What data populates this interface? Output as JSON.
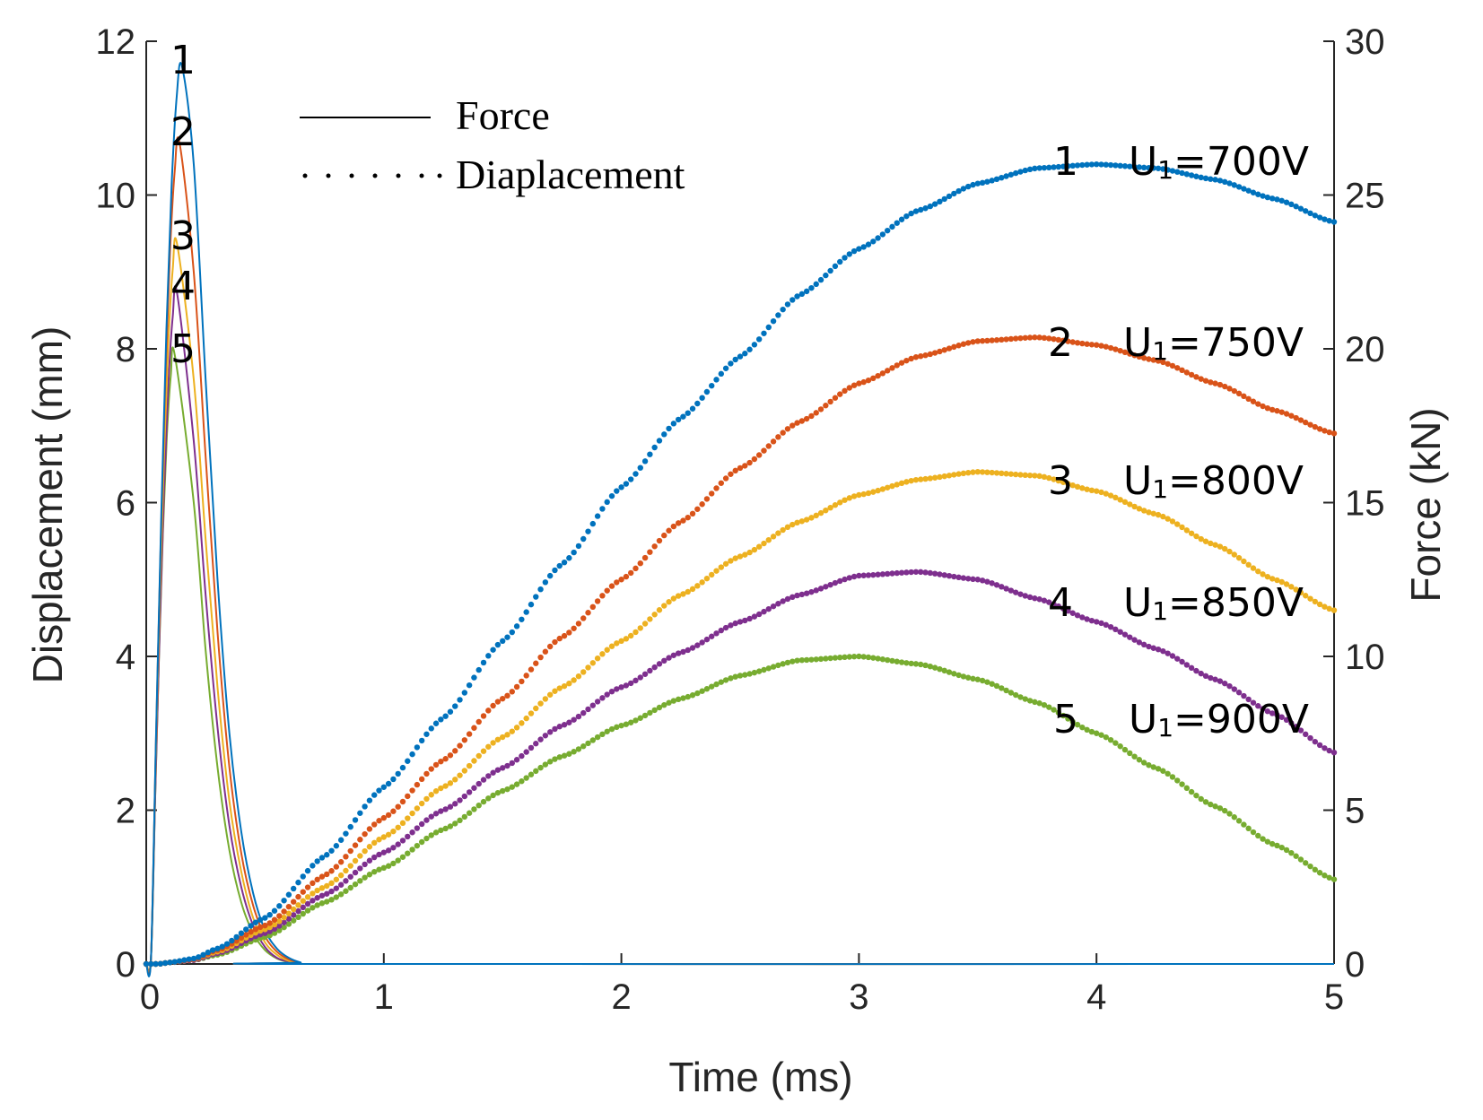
{
  "chart_data": {
    "type": "line",
    "title": "",
    "xlabel": "Time (ms)",
    "ylabel_left": "Displacement (mm)",
    "ylabel_right": "Force (kN)",
    "xlim": [
      0,
      5
    ],
    "ylim_left": [
      0,
      12
    ],
    "ylim_right": [
      0,
      30
    ],
    "x_ticks": [
      "0",
      "1",
      "2",
      "3",
      "4",
      "5"
    ],
    "y_ticks_left": [
      "0",
      "2",
      "4",
      "6",
      "8",
      "10",
      "12"
    ],
    "y_ticks_right": [
      "0",
      "5",
      "10",
      "15",
      "20",
      "25",
      "30"
    ],
    "grid": false,
    "legend": {
      "placement": "top-left",
      "entries": [
        {
          "label": "Force",
          "style": "solid"
        },
        {
          "label": "Diaplacement",
          "style": "dotted"
        }
      ]
    },
    "series": [
      {
        "id": "1",
        "name": "U1=700V",
        "label_num": "1",
        "label_base": "U",
        "label_sub": "1",
        "label_rest": "=700V",
        "color": "#0072BD",
        "force_peak_kN": 29.2,
        "force_peak_time_ms": 0.15,
        "force_decay": [
          [
            0.15,
            29.2
          ],
          [
            0.2,
            26.0
          ],
          [
            0.25,
            19.0
          ],
          [
            0.3,
            12.5
          ],
          [
            0.35,
            7.5
          ],
          [
            0.4,
            4.3
          ],
          [
            0.45,
            2.3
          ],
          [
            0.5,
            1.1
          ],
          [
            0.55,
            0.5
          ],
          [
            0.6,
            0.2
          ],
          [
            0.65,
            0.05
          ],
          [
            0.7,
            0.0
          ]
        ],
        "displacement": [
          [
            0,
            0
          ],
          [
            0.05,
            0.0
          ],
          [
            0.1,
            0.02
          ],
          [
            0.2,
            0.07
          ],
          [
            0.3,
            0.2
          ],
          [
            0.5,
            0.6
          ],
          [
            0.75,
            1.4
          ],
          [
            1.0,
            2.3
          ],
          [
            1.25,
            3.2
          ],
          [
            1.5,
            4.2
          ],
          [
            1.75,
            5.2
          ],
          [
            2.0,
            6.2
          ],
          [
            2.25,
            7.1
          ],
          [
            2.5,
            7.9
          ],
          [
            2.75,
            8.7
          ],
          [
            3.0,
            9.3
          ],
          [
            3.25,
            9.8
          ],
          [
            3.5,
            10.15
          ],
          [
            3.75,
            10.35
          ],
          [
            4.0,
            10.4
          ],
          [
            4.25,
            10.35
          ],
          [
            4.5,
            10.2
          ],
          [
            4.75,
            9.95
          ],
          [
            5.0,
            9.65
          ]
        ]
      },
      {
        "id": "2",
        "name": "U1=750V",
        "label_num": "2",
        "label_base": "U",
        "label_sub": "1",
        "label_rest": "=750V",
        "color": "#D95319",
        "force_peak_kN": 26.7,
        "force_peak_time_ms": 0.14,
        "force_decay": [
          [
            0.14,
            26.7
          ],
          [
            0.2,
            22.5
          ],
          [
            0.25,
            16.5
          ],
          [
            0.3,
            10.8
          ],
          [
            0.35,
            6.4
          ],
          [
            0.4,
            3.6
          ],
          [
            0.45,
            1.9
          ],
          [
            0.5,
            0.9
          ],
          [
            0.55,
            0.4
          ],
          [
            0.6,
            0.15
          ],
          [
            0.65,
            0.04
          ],
          [
            0.7,
            0.0
          ]
        ],
        "displacement": [
          [
            0,
            0
          ],
          [
            0.05,
            0.0
          ],
          [
            0.1,
            0.02
          ],
          [
            0.2,
            0.06
          ],
          [
            0.3,
            0.18
          ],
          [
            0.5,
            0.5
          ],
          [
            0.75,
            1.15
          ],
          [
            1.0,
            1.9
          ],
          [
            1.25,
            2.65
          ],
          [
            1.5,
            3.45
          ],
          [
            1.75,
            4.25
          ],
          [
            2.0,
            5.0
          ],
          [
            2.25,
            5.75
          ],
          [
            2.5,
            6.45
          ],
          [
            2.75,
            7.05
          ],
          [
            3.0,
            7.55
          ],
          [
            3.25,
            7.9
          ],
          [
            3.5,
            8.1
          ],
          [
            3.75,
            8.15
          ],
          [
            4.0,
            8.05
          ],
          [
            4.25,
            7.85
          ],
          [
            4.5,
            7.55
          ],
          [
            4.75,
            7.2
          ],
          [
            5.0,
            6.9
          ]
        ]
      },
      {
        "id": "3",
        "name": "U1=800V",
        "label_num": "3",
        "label_base": "U",
        "label_sub": "1",
        "label_rest": "=800V",
        "color": "#EDB120",
        "force_peak_kN": 23.4,
        "force_peak_time_ms": 0.13,
        "force_decay": [
          [
            0.13,
            23.4
          ],
          [
            0.2,
            19.0
          ],
          [
            0.25,
            13.8
          ],
          [
            0.3,
            9.0
          ],
          [
            0.35,
            5.3
          ],
          [
            0.4,
            3.0
          ],
          [
            0.45,
            1.5
          ],
          [
            0.5,
            0.7
          ],
          [
            0.55,
            0.3
          ],
          [
            0.6,
            0.1
          ],
          [
            0.65,
            0.03
          ],
          [
            0.7,
            0.0
          ]
        ],
        "displacement": [
          [
            0,
            0
          ],
          [
            0.05,
            0.0
          ],
          [
            0.1,
            0.02
          ],
          [
            0.2,
            0.06
          ],
          [
            0.3,
            0.16
          ],
          [
            0.5,
            0.45
          ],
          [
            0.75,
            1.0
          ],
          [
            1.0,
            1.65
          ],
          [
            1.25,
            2.3
          ],
          [
            1.5,
            2.95
          ],
          [
            1.75,
            3.6
          ],
          [
            2.0,
            4.2
          ],
          [
            2.25,
            4.8
          ],
          [
            2.5,
            5.3
          ],
          [
            2.75,
            5.75
          ],
          [
            3.0,
            6.1
          ],
          [
            3.25,
            6.3
          ],
          [
            3.5,
            6.4
          ],
          [
            3.75,
            6.35
          ],
          [
            4.0,
            6.15
          ],
          [
            4.25,
            5.85
          ],
          [
            4.5,
            5.45
          ],
          [
            4.75,
            5.0
          ],
          [
            5.0,
            4.6
          ]
        ]
      },
      {
        "id": "4",
        "name": "U1=850V",
        "label_num": "4",
        "label_base": "U",
        "label_sub": "1",
        "label_rest": "=850V",
        "color": "#7E2F8E",
        "force_peak_kN": 21.8,
        "force_peak_time_ms": 0.13,
        "force_decay": [
          [
            0.13,
            21.8
          ],
          [
            0.2,
            17.0
          ],
          [
            0.25,
            12.0
          ],
          [
            0.3,
            7.7
          ],
          [
            0.35,
            4.5
          ],
          [
            0.4,
            2.5
          ],
          [
            0.45,
            1.25
          ],
          [
            0.5,
            0.55
          ],
          [
            0.55,
            0.2
          ],
          [
            0.6,
            0.08
          ],
          [
            0.65,
            0.02
          ],
          [
            0.7,
            0.0
          ]
        ],
        "displacement": [
          [
            0,
            0
          ],
          [
            0.05,
            0.0
          ],
          [
            0.1,
            0.02
          ],
          [
            0.2,
            0.05
          ],
          [
            0.3,
            0.14
          ],
          [
            0.5,
            0.4
          ],
          [
            0.75,
            0.9
          ],
          [
            1.0,
            1.45
          ],
          [
            1.25,
            2.0
          ],
          [
            1.5,
            2.55
          ],
          [
            1.75,
            3.1
          ],
          [
            2.0,
            3.6
          ],
          [
            2.25,
            4.05
          ],
          [
            2.5,
            4.45
          ],
          [
            2.75,
            4.8
          ],
          [
            3.0,
            5.05
          ],
          [
            3.25,
            5.1
          ],
          [
            3.5,
            5.0
          ],
          [
            3.75,
            4.75
          ],
          [
            4.0,
            4.45
          ],
          [
            4.25,
            4.1
          ],
          [
            4.5,
            3.7
          ],
          [
            4.75,
            3.25
          ],
          [
            5.0,
            2.75
          ]
        ]
      },
      {
        "id": "5",
        "name": "U1=900V",
        "label_num": "5",
        "label_base": "U",
        "label_sub": "1",
        "label_rest": "=900V",
        "color": "#77AC30",
        "force_peak_kN": 19.8,
        "force_peak_time_ms": 0.12,
        "force_decay": [
          [
            0.12,
            19.8
          ],
          [
            0.2,
            15.0
          ],
          [
            0.25,
            10.2
          ],
          [
            0.3,
            6.4
          ],
          [
            0.35,
            3.7
          ],
          [
            0.4,
            2.0
          ],
          [
            0.45,
            1.0
          ],
          [
            0.5,
            0.45
          ],
          [
            0.55,
            0.18
          ],
          [
            0.6,
            0.06
          ],
          [
            0.65,
            0.02
          ],
          [
            0.7,
            0.0
          ]
        ],
        "displacement": [
          [
            0,
            0
          ],
          [
            0.05,
            0.0
          ],
          [
            0.1,
            0.02
          ],
          [
            0.2,
            0.05
          ],
          [
            0.3,
            0.12
          ],
          [
            0.5,
            0.35
          ],
          [
            0.75,
            0.8
          ],
          [
            1.0,
            1.25
          ],
          [
            1.25,
            1.75
          ],
          [
            1.5,
            2.25
          ],
          [
            1.75,
            2.7
          ],
          [
            2.0,
            3.1
          ],
          [
            2.25,
            3.45
          ],
          [
            2.5,
            3.75
          ],
          [
            2.75,
            3.95
          ],
          [
            3.0,
            4.0
          ],
          [
            3.25,
            3.9
          ],
          [
            3.5,
            3.7
          ],
          [
            3.75,
            3.4
          ],
          [
            4.0,
            3.0
          ],
          [
            4.25,
            2.55
          ],
          [
            4.5,
            2.05
          ],
          [
            4.75,
            1.55
          ],
          [
            5.0,
            1.1
          ]
        ]
      }
    ]
  }
}
